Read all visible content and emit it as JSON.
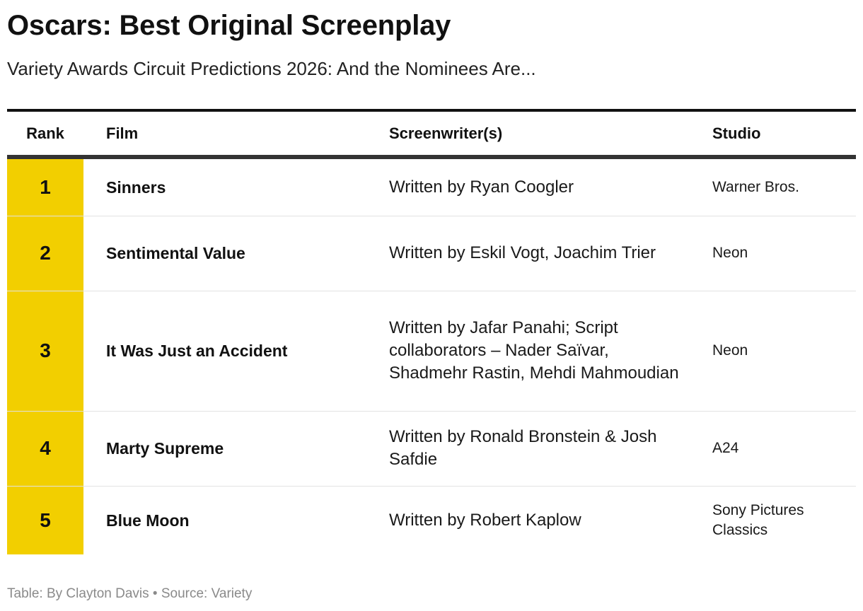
{
  "chart_data": {
    "type": "table",
    "title": "Oscars: Best Original Screenplay",
    "subtitle": "Variety Awards Circuit Predictions 2026: And the Nominees Are...",
    "columns": [
      "Rank",
      "Film",
      "Screenwriter(s)",
      "Studio"
    ],
    "rows": [
      {
        "rank": "1",
        "film": "Sinners",
        "screenwriters": "Written by Ryan Coogler",
        "studio": "Warner Bros."
      },
      {
        "rank": "2",
        "film": "Sentimental Value",
        "screenwriters": "Written by Eskil Vogt, Joachim Trier",
        "studio": "Neon"
      },
      {
        "rank": "3",
        "film": "It Was Just an Accident",
        "screenwriters": "Written by Jafar Panahi; Script collaborators – Nader Saïvar, Shadmehr Rastin, Mehdi Mahmoudian",
        "studio": "Neon"
      },
      {
        "rank": "4",
        "film": "Marty Supreme",
        "screenwriters": "Written by Ronald Bronstein & Josh Safdie",
        "studio": "A24"
      },
      {
        "rank": "5",
        "film": "Blue Moon",
        "screenwriters": "Written by Robert Kaplow",
        "studio": "Sony Pictures Classics"
      }
    ],
    "footer": "Table: By Clayton Davis • Source: Variety",
    "colors": {
      "rank_highlight": "#f2cf00",
      "header_rule": "#111111",
      "footer_text": "#8a8a8a"
    }
  }
}
